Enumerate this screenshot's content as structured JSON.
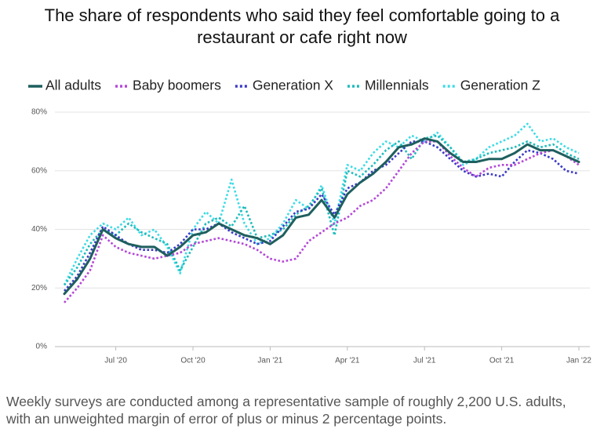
{
  "chart_data": {
    "type": "line",
    "title": "The share of respondents who said they feel comfortable going to a restaurant or cafe right now",
    "note": "Weekly surveys are conducted among a representative sample of roughly 2,200 U.S. adults, with an unweighted margin of error of plus or minus 2 percentage points.",
    "categories": [
      null,
      null,
      null,
      null,
      "Jul '20",
      null,
      null,
      null,
      null,
      null,
      "Oct '20",
      null,
      null,
      null,
      null,
      null,
      "Jan '21",
      null,
      null,
      null,
      null,
      null,
      "Apr '21",
      null,
      null,
      null,
      null,
      null,
      "Jul '21",
      null,
      null,
      null,
      null,
      null,
      "Oct '21",
      null,
      null,
      null,
      null,
      null,
      "Jan '22"
    ],
    "series": [
      {
        "name": "All adults",
        "color": "#1f5f5f",
        "style": "solid",
        "values": [
          18,
          23,
          30,
          40,
          37,
          35,
          34,
          34,
          31,
          34,
          38,
          39,
          42,
          40,
          38,
          37,
          35,
          38,
          44,
          45,
          50,
          44,
          52,
          56,
          59,
          63,
          68,
          69,
          71,
          70,
          66,
          63,
          63,
          64,
          64,
          66,
          69,
          67,
          67,
          65,
          63
        ]
      },
      {
        "name": "Baby boomers",
        "color": "#b448d8",
        "style": "dotted",
        "values": [
          15,
          20,
          26,
          38,
          34,
          32,
          31,
          30,
          31,
          32,
          35,
          36,
          37,
          36,
          35,
          33,
          30,
          29,
          30,
          36,
          39,
          42,
          44,
          48,
          50,
          54,
          60,
          66,
          70,
          70,
          65,
          61,
          58,
          61,
          62,
          62,
          64,
          66,
          67,
          65,
          62
        ]
      },
      {
        "name": "Generation X",
        "color": "#3a3ac8",
        "style": "dotted",
        "values": [
          19,
          24,
          32,
          41,
          38,
          35,
          33,
          33,
          32,
          35,
          40,
          40,
          42,
          39,
          37,
          35,
          36,
          41,
          46,
          47,
          52,
          45,
          54,
          56,
          60,
          62,
          66,
          70,
          70,
          68,
          64,
          60,
          58,
          59,
          58,
          63,
          67,
          66,
          64,
          60,
          59
        ]
      },
      {
        "name": "Millennials",
        "color": "#1fbcbc",
        "style": "dotted",
        "values": [
          21,
          27,
          35,
          40,
          38,
          42,
          39,
          37,
          35,
          26,
          34,
          42,
          44,
          41,
          48,
          37,
          38,
          40,
          45,
          48,
          54,
          38,
          60,
          58,
          62,
          67,
          70,
          64,
          71,
          72,
          68,
          63,
          64,
          66,
          67,
          68,
          70,
          68,
          69,
          66,
          64
        ]
      },
      {
        "name": "Generation Z",
        "color": "#3fdbe6",
        "style": "dotted",
        "values": [
          21,
          30,
          38,
          42,
          40,
          44,
          38,
          40,
          34,
          25,
          40,
          46,
          42,
          57,
          42,
          35,
          37,
          42,
          50,
          47,
          55,
          42,
          62,
          60,
          66,
          70,
          68,
          72,
          70,
          73,
          68,
          62,
          64,
          68,
          70,
          72,
          76,
          70,
          71,
          68,
          66
        ]
      }
    ],
    "ylim": [
      0,
      80
    ],
    "yticks": [
      {
        "value": 0,
        "label": "0%"
      },
      {
        "value": 20,
        "label": "20%"
      },
      {
        "value": 40,
        "label": "40%"
      },
      {
        "value": 60,
        "label": "60%"
      },
      {
        "value": 80,
        "label": "80%"
      }
    ],
    "grid": true,
    "legend": "top"
  }
}
